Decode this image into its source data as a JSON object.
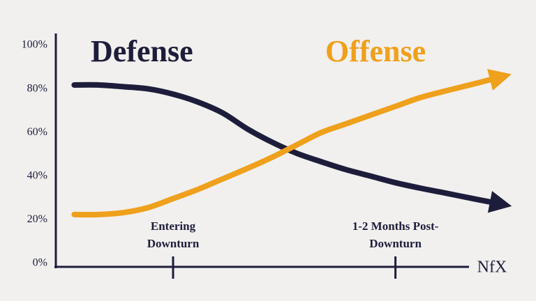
{
  "chart_data": {
    "type": "line",
    "categories": [
      null,
      null,
      null,
      null,
      "Entering Downturn",
      null,
      null,
      null,
      null,
      null,
      null,
      null,
      null,
      "1-2 Months Post-Downturn",
      null,
      null,
      null,
      null
    ],
    "series": [
      {
        "name": "Defense",
        "color": "#1d1d3b",
        "values": [
          81.8,
          81.8,
          81,
          80,
          77.6,
          74,
          69,
          61.7,
          55.6,
          50.5,
          46.6,
          43,
          40,
          37,
          34.5,
          32.3,
          30,
          27.8
        ]
      },
      {
        "name": "Offense",
        "color": "#efa01c",
        "values": [
          22.4,
          22.4,
          23.3,
          25.6,
          29.7,
          33.9,
          38.7,
          43.5,
          48.6,
          54.3,
          60,
          64,
          68,
          72,
          76,
          79,
          81.8,
          84.7
        ]
      }
    ],
    "ylim": [
      0,
      100
    ],
    "yticks": [
      {
        "value": 0,
        "label": "0%"
      },
      {
        "value": 20,
        "label": "20%"
      },
      {
        "value": 40,
        "label": "40%"
      },
      {
        "value": 60,
        "label": "60%"
      },
      {
        "value": 80,
        "label": "80%"
      },
      {
        "value": 100,
        "label": "100%"
      }
    ],
    "grid": false,
    "logo": "NfX"
  }
}
